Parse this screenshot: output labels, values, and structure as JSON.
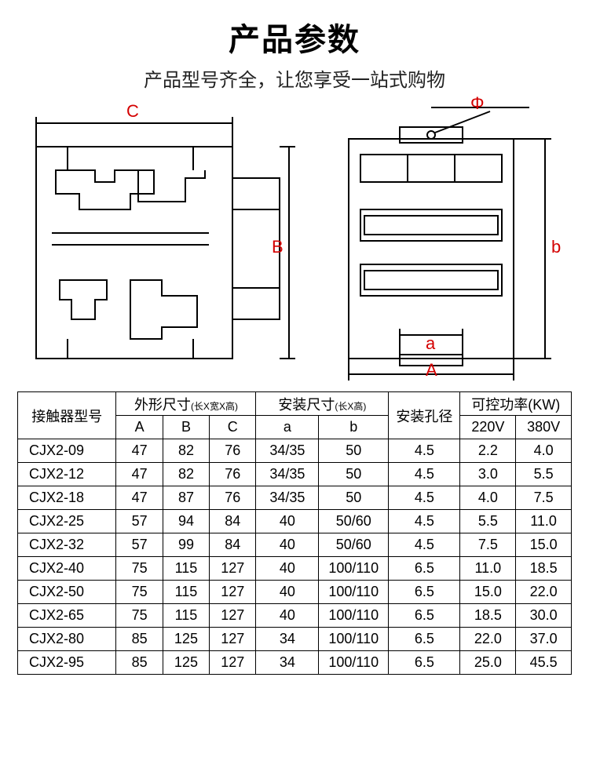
{
  "header": {
    "title": "产品参数",
    "subtitle": "产品型号齐全，让您享受一站式购物"
  },
  "diagram": {
    "labels": {
      "C": "C",
      "B": "B",
      "Phi": "Φ",
      "A": "A",
      "a": "a",
      "b": "b"
    },
    "label_colors": {
      "C": "#d40000",
      "B": "#d40000",
      "Phi": "#d40000",
      "A": "#d40000",
      "a": "#d40000",
      "b": "#d40000"
    },
    "stroke_color": "#000000",
    "stroke_width": 2
  },
  "table": {
    "header": {
      "model": "接触器型号",
      "outer_dim": "外形尺寸",
      "outer_dim_note": "(长X宽X高)",
      "install_dim": "安装尺寸",
      "install_dim_note": "(长X高)",
      "hole": "安装孔径",
      "power": "可控功率(KW)",
      "A": "A",
      "B": "B",
      "C": "C",
      "a": "a",
      "b": "b",
      "v220": "220V",
      "v380": "380V"
    },
    "rows": [
      {
        "model": "CJX2-09",
        "A": "47",
        "B": "82",
        "C": "76",
        "a": "34/35",
        "b": "50",
        "hole": "4.5",
        "v220": "2.2",
        "v380": "4.0"
      },
      {
        "model": "CJX2-12",
        "A": "47",
        "B": "82",
        "C": "76",
        "a": "34/35",
        "b": "50",
        "hole": "4.5",
        "v220": "3.0",
        "v380": "5.5"
      },
      {
        "model": "CJX2-18",
        "A": "47",
        "B": "87",
        "C": "76",
        "a": "34/35",
        "b": "50",
        "hole": "4.5",
        "v220": "4.0",
        "v380": "7.5"
      },
      {
        "model": "CJX2-25",
        "A": "57",
        "B": "94",
        "C": "84",
        "a": "40",
        "b": "50/60",
        "hole": "4.5",
        "v220": "5.5",
        "v380": "11.0"
      },
      {
        "model": "CJX2-32",
        "A": "57",
        "B": "99",
        "C": "84",
        "a": "40",
        "b": "50/60",
        "hole": "4.5",
        "v220": "7.5",
        "v380": "15.0"
      },
      {
        "model": "CJX2-40",
        "A": "75",
        "B": "115",
        "C": "127",
        "a": "40",
        "b": "100/110",
        "hole": "6.5",
        "v220": "11.0",
        "v380": "18.5"
      },
      {
        "model": "CJX2-50",
        "A": "75",
        "B": "115",
        "C": "127",
        "a": "40",
        "b": "100/110",
        "hole": "6.5",
        "v220": "15.0",
        "v380": "22.0"
      },
      {
        "model": "CJX2-65",
        "A": "75",
        "B": "115",
        "C": "127",
        "a": "40",
        "b": "100/110",
        "hole": "6.5",
        "v220": "18.5",
        "v380": "30.0"
      },
      {
        "model": "CJX2-80",
        "A": "85",
        "B": "125",
        "C": "127",
        "a": "34",
        "b": "100/110",
        "hole": "6.5",
        "v220": "22.0",
        "v380": "37.0"
      },
      {
        "model": "CJX2-95",
        "A": "85",
        "B": "125",
        "C": "127",
        "a": "34",
        "b": "100/110",
        "hole": "6.5",
        "v220": "25.0",
        "v380": "45.5"
      }
    ]
  }
}
